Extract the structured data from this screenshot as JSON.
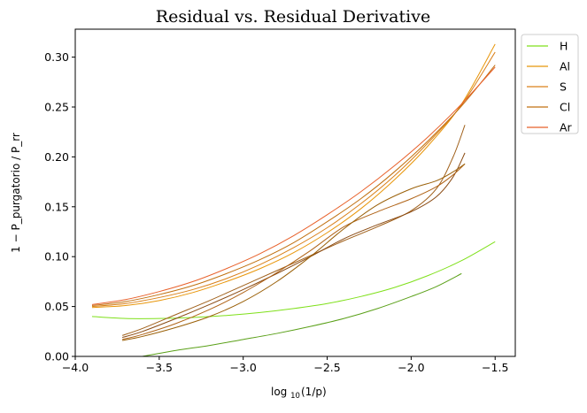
{
  "chart_data": {
    "type": "line",
    "title": "Residual vs. Residual Derivative",
    "xlabel_main": "log",
    "xlabel_sub": "10",
    "xlabel_frac": "(1/p)",
    "ylabel": "1 − P_purgatorio / P_rr",
    "xlim": [
      -4.0,
      -1.38
    ],
    "ylim": [
      0.0,
      0.328
    ],
    "xticks": [
      -4.0,
      -3.5,
      -3.0,
      -2.5,
      -2.0,
      -1.5
    ],
    "xtick_labels": [
      "−4.0",
      "−3.5",
      "−3.0",
      "−2.5",
      "−2.0",
      "−1.5"
    ],
    "yticks": [
      0.0,
      0.05,
      0.1,
      0.15,
      0.2,
      0.25,
      0.3
    ],
    "ytick_labels": [
      "0.00",
      "0.05",
      "0.10",
      "0.15",
      "0.20",
      "0.25",
      "0.30"
    ],
    "grid": false,
    "legend_position": "outside-top-right",
    "legend": [
      {
        "name": "H",
        "color": "#7fe01a"
      },
      {
        "name": "Al",
        "color": "#e8960a"
      },
      {
        "name": "S",
        "color": "#d9801a"
      },
      {
        "name": "Cl",
        "color": "#c07010"
      },
      {
        "name": "Ar",
        "color": "#e8602a"
      }
    ],
    "series": [
      {
        "color": "#7fe01a",
        "x": [
          -3.9,
          -3.7,
          -3.5,
          -3.3,
          -3.1,
          -2.9,
          -2.7,
          -2.5,
          -2.3,
          -2.1,
          -1.9,
          -1.7,
          -1.5
        ],
        "y": [
          0.04,
          0.038,
          0.038,
          0.039,
          0.041,
          0.044,
          0.048,
          0.053,
          0.06,
          0.069,
          0.081,
          0.096,
          0.115
        ]
      },
      {
        "color": "#5aa018",
        "x": [
          -3.6,
          -3.4,
          -3.2,
          -3.0,
          -2.8,
          -2.6,
          -2.4,
          -2.2,
          -2.0,
          -1.85,
          -1.7
        ],
        "y": [
          0.0,
          0.006,
          0.011,
          0.017,
          0.023,
          0.03,
          0.038,
          0.048,
          0.06,
          0.07,
          0.083
        ]
      },
      {
        "color": "#e8960a",
        "x": [
          -3.9,
          -3.7,
          -3.5,
          -3.3,
          -3.1,
          -2.9,
          -2.7,
          -2.5,
          -2.3,
          -2.1,
          -1.9,
          -1.7,
          -1.5
        ],
        "y": [
          0.049,
          0.051,
          0.056,
          0.064,
          0.075,
          0.088,
          0.104,
          0.124,
          0.148,
          0.177,
          0.211,
          0.253,
          0.313
        ]
      },
      {
        "color": "#d9801a",
        "x": [
          -3.9,
          -3.7,
          -3.5,
          -3.3,
          -3.1,
          -2.9,
          -2.7,
          -2.5,
          -2.3,
          -2.1,
          -1.9,
          -1.7,
          -1.5
        ],
        "y": [
          0.05,
          0.053,
          0.059,
          0.067,
          0.078,
          0.092,
          0.109,
          0.129,
          0.153,
          0.181,
          0.214,
          0.252,
          0.305
        ]
      },
      {
        "color": "#c07010",
        "x": [
          -3.9,
          -3.7,
          -3.5,
          -3.3,
          -3.1,
          -2.9,
          -2.7,
          -2.5,
          -2.3,
          -2.1,
          -1.9,
          -1.7,
          -1.5
        ],
        "y": [
          0.051,
          0.055,
          0.062,
          0.071,
          0.083,
          0.097,
          0.114,
          0.135,
          0.158,
          0.185,
          0.216,
          0.251,
          0.292
        ]
      },
      {
        "color": "#e8602a",
        "x": [
          -3.9,
          -3.7,
          -3.5,
          -3.3,
          -3.1,
          -2.9,
          -2.7,
          -2.5,
          -2.3,
          -2.1,
          -1.9,
          -1.7,
          -1.5
        ],
        "y": [
          0.052,
          0.057,
          0.065,
          0.075,
          0.088,
          0.103,
          0.121,
          0.142,
          0.165,
          0.191,
          0.22,
          0.253,
          0.29
        ]
      },
      {
        "color": "#a0601a",
        "x": [
          -3.72,
          -3.6,
          -3.4,
          -3.2,
          -3.0,
          -2.8,
          -2.6,
          -2.4,
          -2.2,
          -2.0,
          -1.85,
          -1.75,
          -1.68
        ],
        "y": [
          0.021,
          0.028,
          0.042,
          0.056,
          0.071,
          0.086,
          0.101,
          0.116,
          0.13,
          0.146,
          0.168,
          0.2,
          0.232
        ]
      },
      {
        "color": "#8a4a12",
        "x": [
          -3.72,
          -3.6,
          -3.4,
          -3.2,
          -3.0,
          -2.8,
          -2.6,
          -2.4,
          -2.2,
          -2.0,
          -1.85,
          -1.75,
          -1.68
        ],
        "y": [
          0.019,
          0.025,
          0.038,
          0.052,
          0.067,
          0.083,
          0.1,
          0.118,
          0.132,
          0.145,
          0.16,
          0.18,
          0.204
        ]
      },
      {
        "color": "#b06418",
        "x": [
          -3.72,
          -3.6,
          -3.4,
          -3.2,
          -3.0,
          -2.8,
          -2.6,
          -2.4,
          -2.2,
          -2.0,
          -1.85,
          -1.75,
          -1.68
        ],
        "y": [
          0.017,
          0.022,
          0.033,
          0.047,
          0.064,
          0.084,
          0.106,
          0.13,
          0.145,
          0.158,
          0.17,
          0.182,
          0.193
        ]
      },
      {
        "color": "#9a6008",
        "x": [
          -3.72,
          -3.6,
          -3.4,
          -3.2,
          -3.0,
          -2.8,
          -2.6,
          -2.4,
          -2.2,
          -2.0,
          -1.85,
          -1.75,
          -1.68
        ],
        "y": [
          0.016,
          0.02,
          0.029,
          0.04,
          0.055,
          0.075,
          0.1,
          0.128,
          0.152,
          0.168,
          0.176,
          0.185,
          0.193
        ]
      }
    ]
  }
}
